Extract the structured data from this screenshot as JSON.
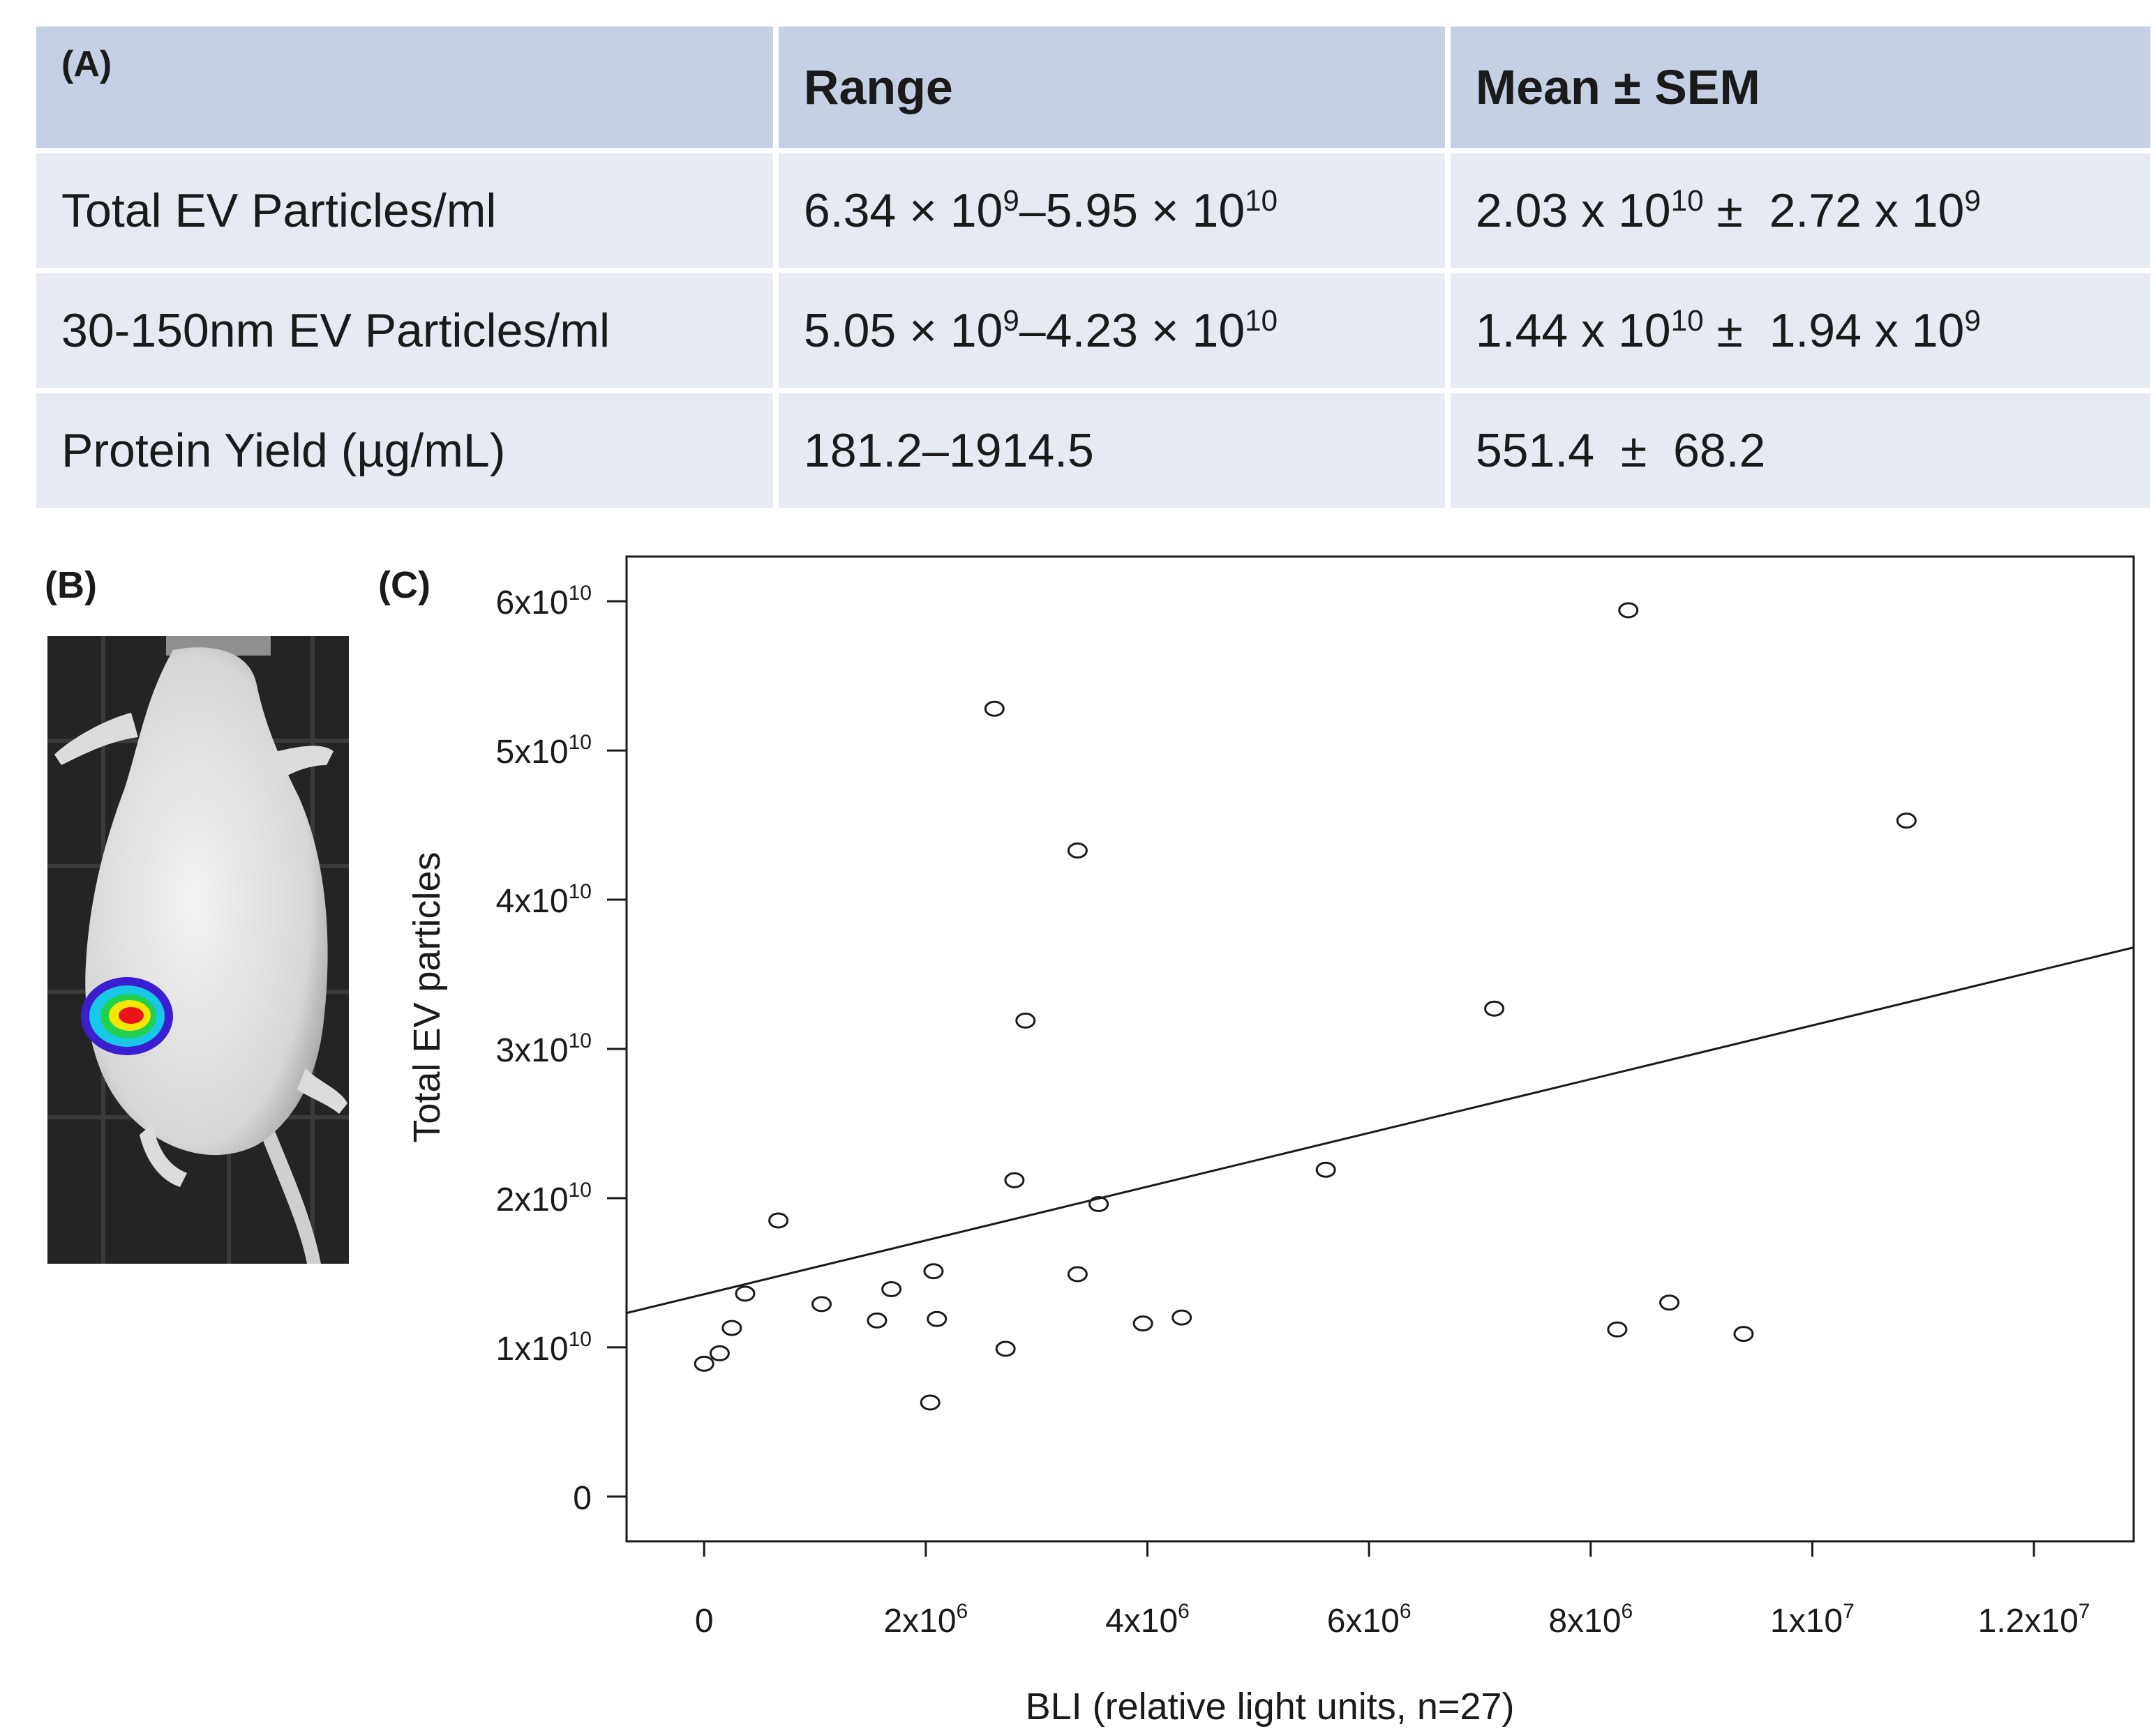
{
  "panels": {
    "a": "(A)",
    "b": "(B)",
    "c": "(C)"
  },
  "table": {
    "headers": [
      "Range",
      "Mean ± SEM"
    ],
    "rows": [
      {
        "label": "Total EV Particles/ml",
        "range_lo_m": "6.34 × 10",
        "range_lo_e": "9",
        "range_hi_m": "5.95 × 10",
        "range_hi_e": "10",
        "mean_m": "2.03 x 10",
        "mean_e": "10",
        "pm": "±",
        "sem_m": "2.72 x 10",
        "sem_e": "9"
      },
      {
        "label": "30-150nm EV Particles/ml",
        "range_lo_m": "5.05 × 10",
        "range_lo_e": "9",
        "range_hi_m": "4.23 × 10",
        "range_hi_e": "10",
        "mean_m": "1.44 x 10",
        "mean_e": "10",
        "pm": "±",
        "sem_m": "1.94 x 10",
        "sem_e": "9"
      },
      {
        "label": "Protein Yield (µg/mL)",
        "range": "181.2–1914.5",
        "mean": "551.4",
        "pm": "±",
        "sem": "68.2"
      }
    ]
  },
  "colors": {
    "header_bg": "#c5d0e4",
    "row_bg": "#e6eaf3",
    "mouse_bg": "#242424",
    "heat_outer": "#3a1fd0",
    "heat_mid": "#18c8e8",
    "heat_inner": "#f7e600",
    "heat_core": "#e8141a"
  },
  "chart_data": {
    "type": "scatter",
    "xlabel": "BLI (relative light units, n=27)",
    "ylabel": "Total EV particles",
    "xlim": [
      -700000,
      12900000
    ],
    "ylim": [
      -3000000000,
      63000000000
    ],
    "x_ticks": [
      {
        "value": 0,
        "m": "0",
        "e": ""
      },
      {
        "value": 2000000,
        "m": "2x10",
        "e": "6"
      },
      {
        "value": 4000000,
        "m": "4x10",
        "e": "6"
      },
      {
        "value": 6000000,
        "m": "6x10",
        "e": "6"
      },
      {
        "value": 8000000,
        "m": "8x10",
        "e": "6"
      },
      {
        "value": 10000000,
        "m": "1x10",
        "e": "7"
      },
      {
        "value": 12000000,
        "m": "1.2x10",
        "e": "7"
      }
    ],
    "y_ticks": [
      {
        "value": 0,
        "m": "0",
        "e": ""
      },
      {
        "value": 10000000000,
        "m": "1x10",
        "e": "10"
      },
      {
        "value": 20000000000,
        "m": "2x10",
        "e": "10"
      },
      {
        "value": 30000000000,
        "m": "3x10",
        "e": "10"
      },
      {
        "value": 40000000000,
        "m": "4x10",
        "e": "10"
      },
      {
        "value": 50000000000,
        "m": "5x10",
        "e": "10"
      },
      {
        "value": 60000000000,
        "m": "6x10",
        "e": "10"
      }
    ],
    "points": [
      {
        "x": 0,
        "y": 8900000000
      },
      {
        "x": 140000,
        "y": 9600000000
      },
      {
        "x": 250000,
        "y": 11300000000
      },
      {
        "x": 370000,
        "y": 13600000000
      },
      {
        "x": 670000,
        "y": 18500000000
      },
      {
        "x": 1060000,
        "y": 12900000000
      },
      {
        "x": 1560000,
        "y": 11800000000
      },
      {
        "x": 1690000,
        "y": 13900000000
      },
      {
        "x": 2040000,
        "y": 6300000000
      },
      {
        "x": 2070000,
        "y": 15100000000
      },
      {
        "x": 2100000,
        "y": 11900000000
      },
      {
        "x": 2620000,
        "y": 52800000000
      },
      {
        "x": 2720000,
        "y": 9900000000
      },
      {
        "x": 2800000,
        "y": 21200000000
      },
      {
        "x": 2900000,
        "y": 31900000000
      },
      {
        "x": 3370000,
        "y": 43300000000
      },
      {
        "x": 3370000,
        "y": 14900000000
      },
      {
        "x": 3560000,
        "y": 19600000000
      },
      {
        "x": 3960000,
        "y": 11600000000
      },
      {
        "x": 4310000,
        "y": 12000000000
      },
      {
        "x": 5610000,
        "y": 21900000000
      },
      {
        "x": 7130000,
        "y": 32700000000
      },
      {
        "x": 8240000,
        "y": 11200000000
      },
      {
        "x": 8340000,
        "y": 59400000000
      },
      {
        "x": 8710000,
        "y": 13000000000
      },
      {
        "x": 9380000,
        "y": 10900000000
      },
      {
        "x": 10850000,
        "y": 45300000000
      }
    ],
    "fit_line": {
      "x": [
        -700000,
        12900000
      ],
      "y": [
        12300000000,
        36800000000
      ]
    }
  }
}
